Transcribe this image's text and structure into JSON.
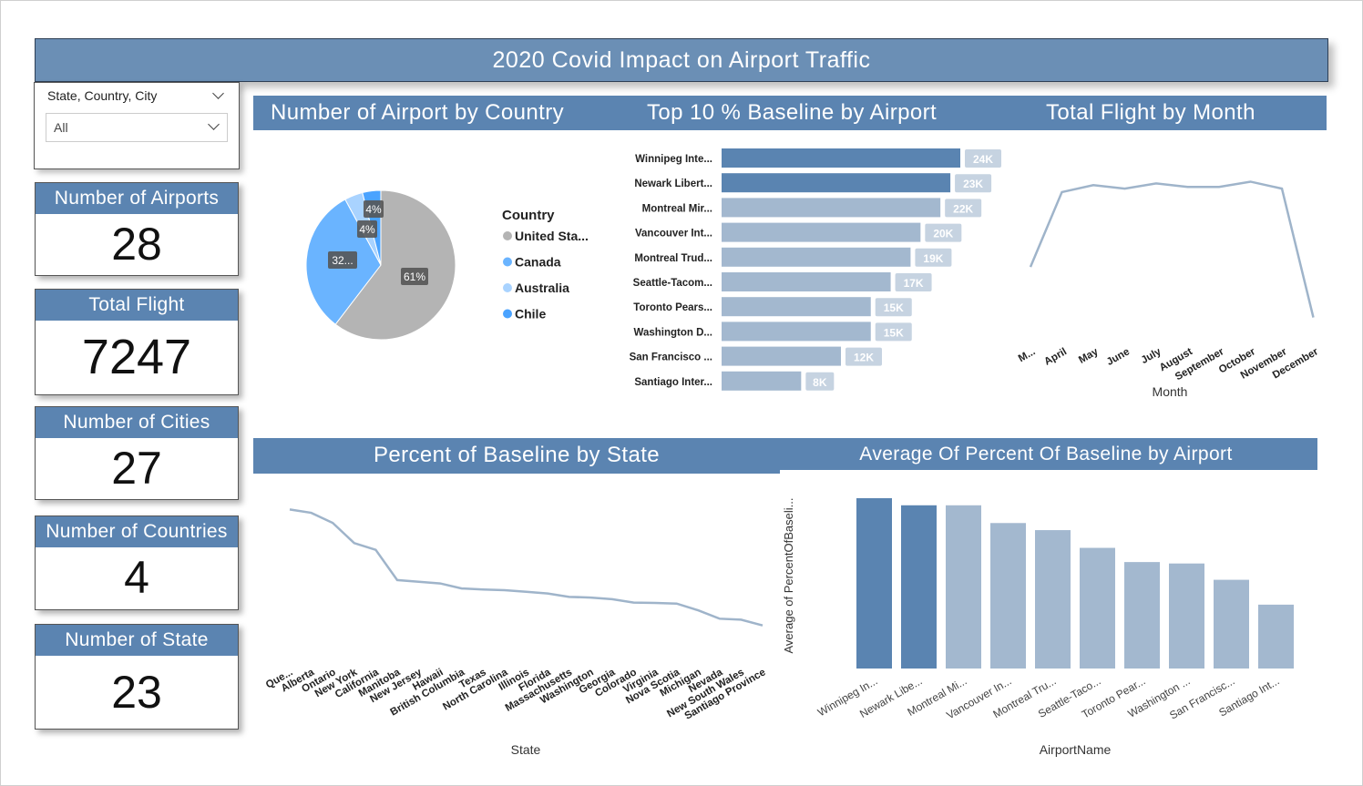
{
  "title": "2020 Covid Impact on Airport Traffic",
  "slicer": {
    "label": "State, Country, City",
    "value": "All"
  },
  "cards": [
    {
      "label": "Number of Airports",
      "value": "28"
    },
    {
      "label": "Total Flight",
      "value": "7247"
    },
    {
      "label": "Number of Cities",
      "value": "27"
    },
    {
      "label": "Number of Countries",
      "value": "4"
    },
    {
      "label": "Number of State",
      "value": "23"
    }
  ],
  "section_titles": {
    "pie": "Number of Airport by Country",
    "top10": "Top 10 % Baseline by Airport",
    "month": "Total Flight by Month",
    "state": "Percent of Baseline by State",
    "avg": "Average Of Percent Of Baseline by Airport"
  },
  "colors": {
    "header": "#5b84b1",
    "dark_bar": "#5a84b1",
    "light_bar": "#a3b8cf",
    "line": "#9fb4ca"
  },
  "chart_data": [
    {
      "type": "pie",
      "legend_title": "Country",
      "slices": [
        {
          "name": "United Sta...",
          "label": "61%",
          "percent": 61,
          "color": "#b4b4b4"
        },
        {
          "name": "Canada",
          "label": "32...",
          "percent": 32,
          "color": "#6ab4ff"
        },
        {
          "name": "Australia",
          "label": "4%",
          "percent": 4,
          "color": "#a9d3ff"
        },
        {
          "name": "Chile",
          "label": "4%",
          "percent": 4,
          "color": "#4aa3ff"
        }
      ]
    },
    {
      "type": "bar",
      "orientation": "horizontal",
      "categories": [
        "Winnipeg Inte...",
        "Newark Libert...",
        "Montreal Mir...",
        "Vancouver Int...",
        "Montreal Trud...",
        "Seattle-Tacom...",
        "Toronto Pears...",
        "Washington D...",
        "San Francisco ...",
        "Santiago Inter..."
      ],
      "values": [
        24,
        23,
        22,
        20,
        19,
        17,
        15,
        15,
        12,
        8
      ],
      "labels": [
        "24K",
        "23K",
        "22K",
        "20K",
        "19K",
        "17K",
        "15K",
        "15K",
        "12K",
        "8K"
      ],
      "highlight": [
        true,
        true,
        false,
        false,
        false,
        false,
        false,
        false,
        false,
        false
      ]
    },
    {
      "type": "line",
      "xlabel": "Month",
      "categories": [
        "M...",
        "April",
        "May",
        "June",
        "July",
        "August",
        "September",
        "October",
        "November",
        "December"
      ],
      "values": [
        850,
        1280,
        1320,
        1300,
        1330,
        1310,
        1310,
        1340,
        1300,
        560
      ],
      "ylim": [
        500,
        1400
      ]
    },
    {
      "type": "line",
      "xlabel": "State",
      "categories": [
        "Que...",
        "Alberta",
        "Ontario",
        "New York",
        "California",
        "Manitoba",
        "New Jersey",
        "Hawaii",
        "British Columbia",
        "Texas",
        "North Carolina",
        "Illinois",
        "Florida",
        "Massachusetts",
        "Washington",
        "Georgia",
        "Colorado",
        "Virginia",
        "Nova Scotia",
        "Michigan",
        "Nevada",
        "New South Wales",
        "Santiago Province"
      ],
      "values": [
        90,
        89,
        86,
        80,
        78,
        69,
        68.5,
        68,
        66.5,
        66.2,
        66,
        65.5,
        65,
        64,
        63.8,
        63.3,
        62.3,
        62.2,
        62,
        60,
        57.5,
        57.2,
        55.5
      ],
      "ylim": [
        50,
        92
      ]
    },
    {
      "type": "bar",
      "orientation": "vertical",
      "xlabel": "AirportName",
      "ylabel": "Average of PercentOfBaseli...",
      "categories": [
        "Winnipeg In...",
        "Newark Libe...",
        "Montreal Mi...",
        "Vancouver In...",
        "Montreal Tru...",
        "Seattle-Taco...",
        "Toronto Pear...",
        "Washington ...",
        "San Francisc...",
        "Santiago Int..."
      ],
      "values": [
        24,
        23,
        23,
        20.5,
        19.5,
        17,
        15,
        14.8,
        12.5,
        9
      ],
      "highlight": [
        true,
        true,
        false,
        false,
        false,
        false,
        false,
        false,
        false,
        false
      ],
      "ylim": [
        0,
        24
      ]
    }
  ]
}
